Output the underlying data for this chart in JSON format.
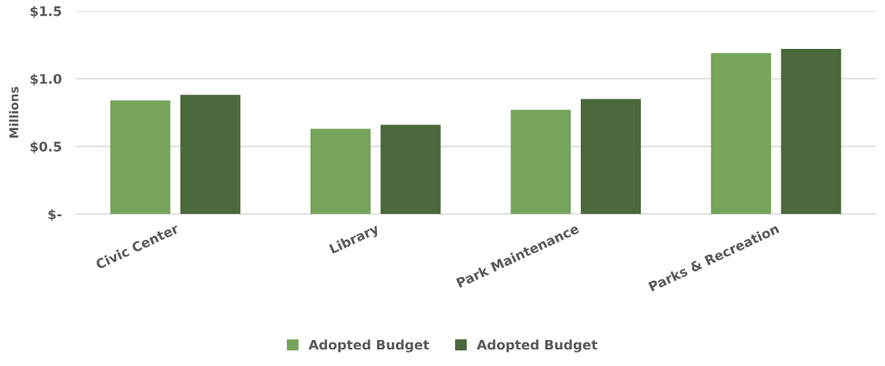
{
  "chart_data": {
    "type": "bar",
    "ylabel": "Millions",
    "categories": [
      "Civic Center",
      "Library",
      "Park Maintenance",
      "Parks & Recreation"
    ],
    "series": [
      {
        "name": "Adopted Budget",
        "color": "#76a45a",
        "values": [
          0.84,
          0.63,
          0.77,
          1.19
        ]
      },
      {
        "name": "Adopted Budget",
        "color": "#4b673c",
        "values": [
          0.88,
          0.66,
          0.85,
          1.22
        ]
      }
    ],
    "ylim": [
      0,
      1.5
    ],
    "yticks": [
      {
        "value": 0,
        "label": "$-"
      },
      {
        "value": 0.5,
        "label": "$0.5"
      },
      {
        "value": 1.0,
        "label": "$1.0"
      },
      {
        "value": 1.5,
        "label": "$1.5"
      }
    ],
    "grid": "y",
    "legend": "bottom"
  }
}
